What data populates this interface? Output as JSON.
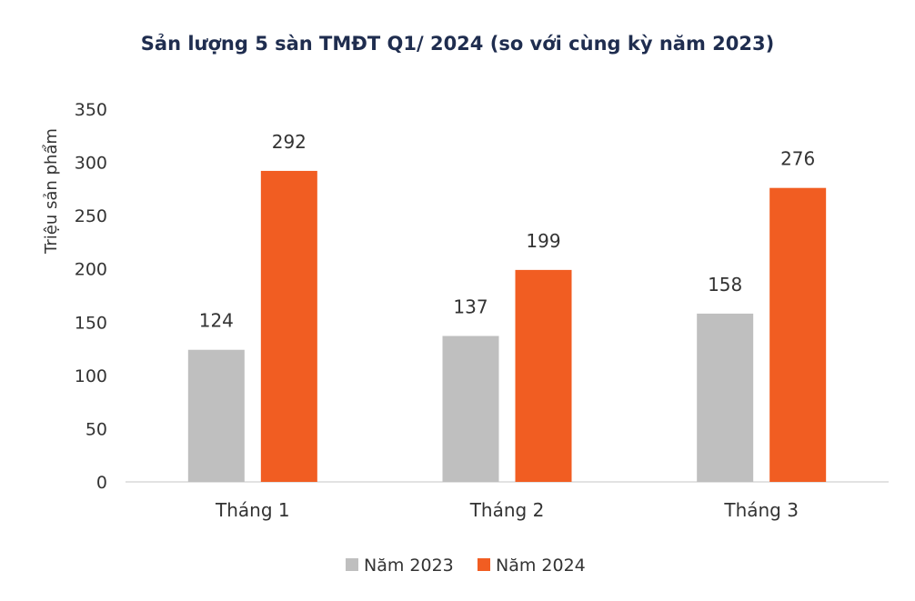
{
  "chart_data": {
    "type": "bar",
    "title": "Sản lượng 5 sàn TMĐT Q1/ 2024 (so với cùng kỳ năm 2023)",
    "xlabel": "",
    "ylabel": "Triệu sản phẩm",
    "categories": [
      "Tháng 1",
      "Tháng 2",
      "Tháng 3"
    ],
    "series": [
      {
        "name": "Năm 2023",
        "values": [
          124,
          137,
          158
        ],
        "color": "#bfbfbf"
      },
      {
        "name": "Năm 2024",
        "values": [
          292,
          199,
          276
        ],
        "color": "#f15d22"
      }
    ],
    "ylim": [
      0,
      350
    ],
    "yticks": [
      0,
      50,
      100,
      150,
      200,
      250,
      300,
      350
    ],
    "grid": false,
    "legend": "bottom"
  }
}
